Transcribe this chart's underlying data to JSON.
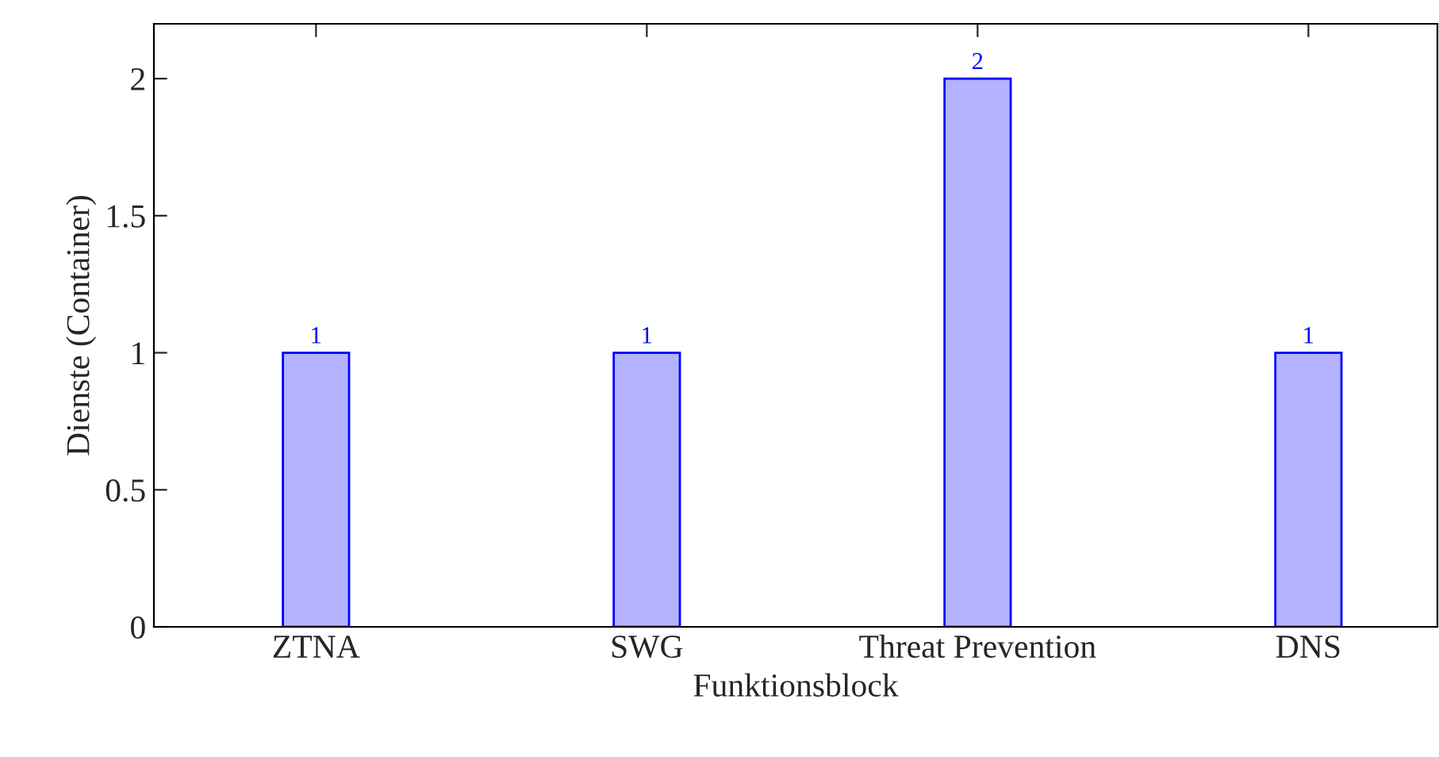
{
  "chart_data": {
    "type": "bar",
    "xlabel": "Funktionsblock",
    "ylabel": "Dienste (Container)",
    "categories": [
      "ZTNA",
      "SWG",
      "Threat Prevention",
      "DNS"
    ],
    "values": [
      1,
      1,
      2,
      1
    ],
    "color": "#b3b3ff",
    "ylim": [
      0,
      2.2
    ],
    "yticks": [
      0,
      0.5,
      1,
      1.5,
      2
    ],
    "grid": false,
    "data_labels": true
  }
}
